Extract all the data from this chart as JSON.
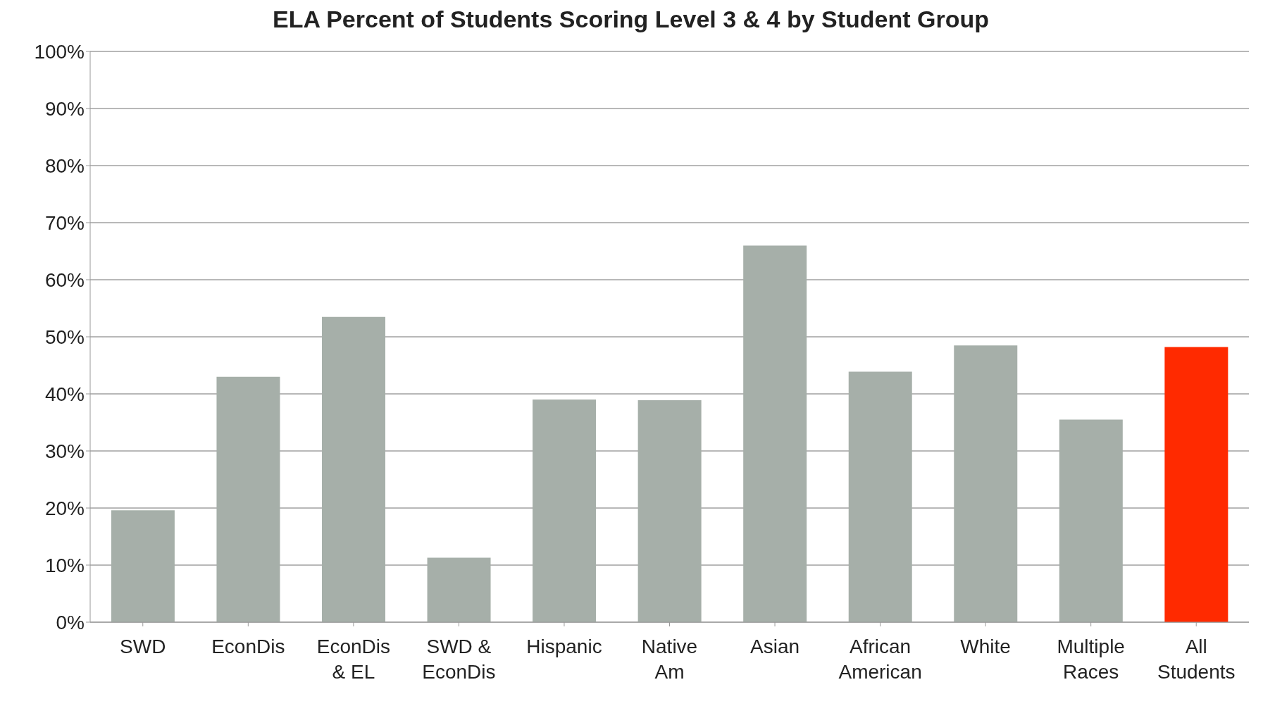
{
  "chart_data": {
    "type": "bar",
    "title": "ELA Percent of Students Scoring Level 3 & 4 by Student Group",
    "categories": [
      "SWD",
      "EconDis",
      "EconDis & EL",
      "SWD & EconDis",
      "Hispanic",
      "Native Am",
      "Asian",
      "African American",
      "White",
      "Multiple Races",
      "All Students"
    ],
    "values": [
      19.6,
      43.0,
      53.5,
      11.3,
      39.0,
      38.9,
      66.0,
      43.9,
      48.5,
      35.5,
      48.2
    ],
    "colors": [
      "#a6afa9",
      "#a6afa9",
      "#a6afa9",
      "#a6afa9",
      "#a6afa9",
      "#a6afa9",
      "#a6afa9",
      "#a6afa9",
      "#a6afa9",
      "#a6afa9",
      "#ff2a00"
    ],
    "ylim": [
      0,
      100
    ],
    "yticks": [
      {
        "value": 0,
        "label": "0%"
      },
      {
        "value": 10,
        "label": "10%"
      },
      {
        "value": 20,
        "label": "20%"
      },
      {
        "value": 30,
        "label": "30%"
      },
      {
        "value": 40,
        "label": "40%"
      },
      {
        "value": 50,
        "label": "50%"
      },
      {
        "value": 60,
        "label": "60%"
      },
      {
        "value": 70,
        "label": "70%"
      },
      {
        "value": 80,
        "label": "80%"
      },
      {
        "value": 90,
        "label": "90%"
      },
      {
        "value": 100,
        "label": "100%"
      }
    ],
    "grid": "y"
  }
}
